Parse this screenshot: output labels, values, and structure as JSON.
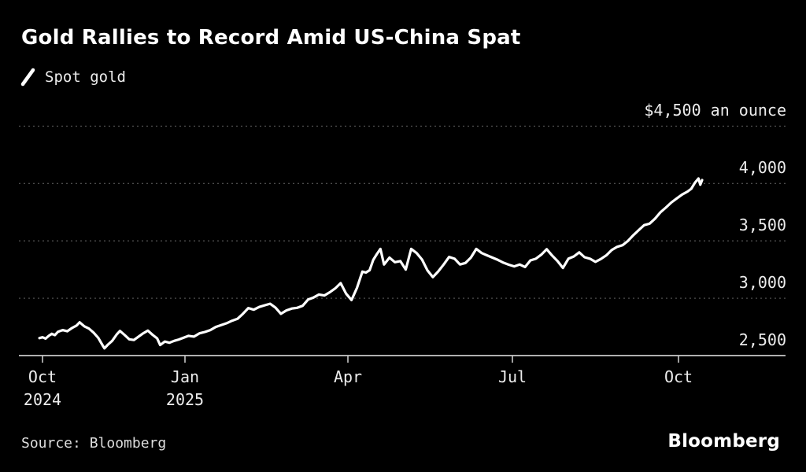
{
  "title": "Gold Rallies to Record Amid US-China Spat",
  "legend": {
    "label": "Spot gold",
    "marker": "slash-icon",
    "color": "#ffffff"
  },
  "source_label": "Source: Bloomberg",
  "brand": "Bloomberg",
  "colors": {
    "background": "#000000",
    "title_text": "#ffffff",
    "label_text": "#ececec",
    "gridline": "#4d4d4d",
    "axis_line": "#c9c9c9",
    "series_line": "#ffffff"
  },
  "chart_data": {
    "type": "line",
    "title": "Gold Rallies to Record Amid US-China Spat",
    "unit_label": "$4,500 an ounce",
    "legend_position": "top-left",
    "grid": "dashed-horizontal",
    "ylim": [
      2500,
      4500
    ],
    "y_ticks": [
      {
        "value": 4500,
        "label": "$4,500 an ounce"
      },
      {
        "value": 4000,
        "label": "4,000"
      },
      {
        "value": 3500,
        "label": "3,500"
      },
      {
        "value": 3000,
        "label": "3,000"
      },
      {
        "value": 2500,
        "label": "2,500"
      }
    ],
    "x_unit": "days since 2024-10-01",
    "x_ticks": [
      {
        "day": 0,
        "label": "Oct",
        "sublabel": "2024"
      },
      {
        "day": 92,
        "label": "Jan",
        "sublabel": "2025"
      },
      {
        "day": 182,
        "label": "Apr",
        "sublabel": ""
      },
      {
        "day": 273,
        "label": "Jul",
        "sublabel": ""
      },
      {
        "day": 365,
        "label": "Oct",
        "sublabel": ""
      }
    ],
    "series": [
      {
        "name": "Spot gold",
        "color": "#ffffff",
        "points": [
          [
            -2,
            2652
          ],
          [
            0,
            2660
          ],
          [
            2,
            2648
          ],
          [
            4,
            2672
          ],
          [
            6,
            2690
          ],
          [
            8,
            2678
          ],
          [
            10,
            2708
          ],
          [
            13,
            2722
          ],
          [
            16,
            2712
          ],
          [
            19,
            2740
          ],
          [
            22,
            2762
          ],
          [
            24,
            2790
          ],
          [
            27,
            2755
          ],
          [
            30,
            2735
          ],
          [
            33,
            2700
          ],
          [
            36,
            2655
          ],
          [
            39,
            2585
          ],
          [
            40,
            2563
          ],
          [
            42,
            2592
          ],
          [
            45,
            2628
          ],
          [
            48,
            2685
          ],
          [
            50,
            2715
          ],
          [
            53,
            2680
          ],
          [
            56,
            2642
          ],
          [
            59,
            2636
          ],
          [
            62,
            2665
          ],
          [
            65,
            2694
          ],
          [
            68,
            2718
          ],
          [
            71,
            2682
          ],
          [
            74,
            2650
          ],
          [
            76,
            2592
          ],
          [
            79,
            2622
          ],
          [
            82,
            2612
          ],
          [
            85,
            2628
          ],
          [
            88,
            2640
          ],
          [
            91,
            2655
          ],
          [
            94,
            2672
          ],
          [
            97,
            2665
          ],
          [
            100,
            2694
          ],
          [
            103,
            2706
          ],
          [
            106,
            2722
          ],
          [
            109,
            2750
          ],
          [
            112,
            2766
          ],
          [
            115,
            2782
          ],
          [
            118,
            2804
          ],
          [
            121,
            2820
          ],
          [
            124,
            2864
          ],
          [
            127,
            2914
          ],
          [
            130,
            2900
          ],
          [
            133,
            2924
          ],
          [
            136,
            2938
          ],
          [
            139,
            2952
          ],
          [
            142,
            2918
          ],
          [
            145,
            2864
          ],
          [
            148,
            2894
          ],
          [
            151,
            2910
          ],
          [
            154,
            2916
          ],
          [
            157,
            2934
          ],
          [
            160,
            2988
          ],
          [
            163,
            3006
          ],
          [
            166,
            3032
          ],
          [
            169,
            3024
          ],
          [
            172,
            3052
          ],
          [
            175,
            3086
          ],
          [
            178,
            3132
          ],
          [
            181,
            3040
          ],
          [
            184,
            2984
          ],
          [
            187,
            3090
          ],
          [
            190,
            3232
          ],
          [
            192,
            3224
          ],
          [
            194,
            3244
          ],
          [
            196,
            3334
          ],
          [
            198,
            3384
          ],
          [
            200,
            3430
          ],
          [
            202,
            3294
          ],
          [
            205,
            3354
          ],
          [
            208,
            3314
          ],
          [
            211,
            3324
          ],
          [
            214,
            3250
          ],
          [
            217,
            3430
          ],
          [
            220,
            3394
          ],
          [
            223,
            3337
          ],
          [
            226,
            3242
          ],
          [
            229,
            3184
          ],
          [
            232,
            3234
          ],
          [
            235,
            3294
          ],
          [
            238,
            3360
          ],
          [
            241,
            3344
          ],
          [
            244,
            3294
          ],
          [
            247,
            3307
          ],
          [
            250,
            3354
          ],
          [
            253,
            3430
          ],
          [
            256,
            3394
          ],
          [
            259,
            3374
          ],
          [
            262,
            3354
          ],
          [
            265,
            3334
          ],
          [
            268,
            3310
          ],
          [
            271,
            3292
          ],
          [
            274,
            3278
          ],
          [
            277,
            3294
          ],
          [
            280,
            3272
          ],
          [
            283,
            3330
          ],
          [
            286,
            3344
          ],
          [
            289,
            3380
          ],
          [
            292,
            3427
          ],
          [
            295,
            3372
          ],
          [
            298,
            3324
          ],
          [
            301,
            3264
          ],
          [
            304,
            3344
          ],
          [
            307,
            3364
          ],
          [
            310,
            3400
          ],
          [
            313,
            3357
          ],
          [
            316,
            3344
          ],
          [
            319,
            3317
          ],
          [
            322,
            3342
          ],
          [
            325,
            3374
          ],
          [
            328,
            3420
          ],
          [
            331,
            3448
          ],
          [
            334,
            3462
          ],
          [
            337,
            3500
          ],
          [
            340,
            3550
          ],
          [
            343,
            3594
          ],
          [
            346,
            3637
          ],
          [
            349,
            3650
          ],
          [
            352,
            3694
          ],
          [
            355,
            3750
          ],
          [
            358,
            3790
          ],
          [
            361,
            3834
          ],
          [
            364,
            3870
          ],
          [
            367,
            3904
          ],
          [
            370,
            3930
          ],
          [
            372,
            3954
          ],
          [
            374,
            4006
          ],
          [
            376,
            4044
          ],
          [
            377,
            3990
          ],
          [
            378,
            4030
          ]
        ]
      }
    ]
  }
}
